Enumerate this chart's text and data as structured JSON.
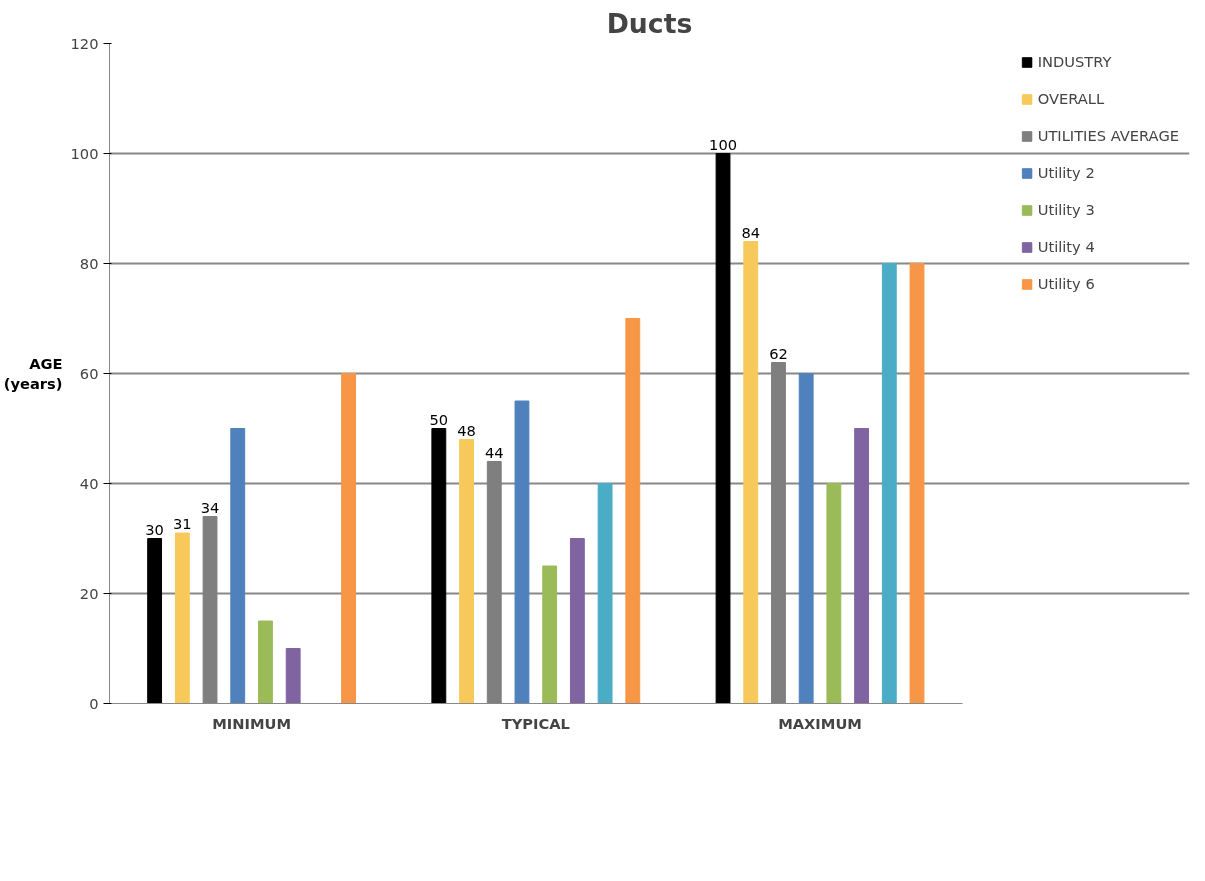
{
  "chart_data": {
    "type": "bar",
    "title": "Ducts",
    "ylabel": "AGE\n(years)",
    "categories": [
      "MINIMUM",
      "TYPICAL",
      "MAXIMUM"
    ],
    "series": [
      {
        "name": "INDUSTRY",
        "color": "#000000",
        "values": [
          30,
          50,
          100
        ],
        "value_labels": [
          "30",
          "50",
          "100"
        ]
      },
      {
        "name": "OVERALL",
        "color": "#f7c95a",
        "values": [
          31,
          48,
          84
        ],
        "value_labels": [
          "31",
          "48",
          "84"
        ]
      },
      {
        "name": "UTILITIES AVERAGE",
        "color": "#7f7f7f",
        "values": [
          34,
          44,
          62
        ],
        "value_labels": [
          "34",
          "44",
          "62"
        ]
      },
      {
        "name": "Utility 2",
        "color": "#4f81bd",
        "values": [
          50,
          55,
          60
        ]
      },
      {
        "name": "Utility 3",
        "color": "#9bbb59",
        "values": [
          15,
          25,
          40
        ]
      },
      {
        "name": "Utility 4",
        "color": "#8064a2",
        "values": [
          10,
          30,
          50
        ]
      },
      {
        "color": "#4bacc6",
        "values": [
          null,
          40,
          80
        ]
      },
      {
        "name": "Utility 6",
        "color": "#f79646",
        "values": [
          60,
          70,
          80
        ]
      }
    ],
    "ylim": [
      0,
      120
    ],
    "yticks": [
      0,
      20,
      40,
      60,
      80,
      100,
      120
    ],
    "grid": "y",
    "legend": "right"
  }
}
